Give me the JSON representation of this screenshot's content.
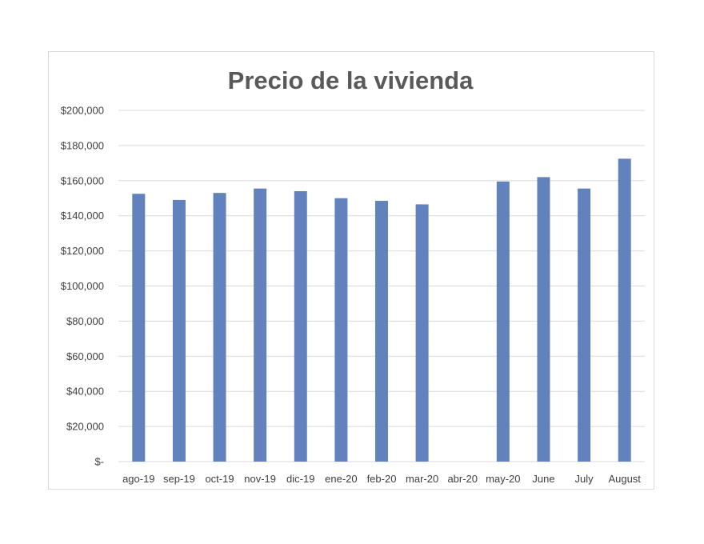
{
  "chart_data": {
    "type": "bar",
    "title": "Precio de la vivienda",
    "xlabel": "",
    "ylabel": "",
    "categories": [
      "ago-19",
      "sep-19",
      "oct-19",
      "nov-19",
      "dic-19",
      "ene-20",
      "feb-20",
      "mar-20",
      "abr-20",
      "may-20",
      "June",
      "July",
      "August"
    ],
    "values": [
      152500,
      149000,
      153000,
      155500,
      154000,
      150000,
      148500,
      146500,
      null,
      159500,
      162000,
      155500,
      172500
    ],
    "ylim": [
      0,
      200000
    ],
    "yticks": [
      0,
      20000,
      40000,
      60000,
      80000,
      100000,
      120000,
      140000,
      160000,
      180000,
      200000
    ],
    "ytick_labels": [
      "$-",
      "$20,000",
      "$40,000",
      "$60,000",
      "$80,000",
      "$100,000",
      "$120,000",
      "$140,000",
      "$160,000",
      "$180,000",
      "$200,000"
    ],
    "bar_color": "#6182bd",
    "grid": true,
    "legend": false
  }
}
